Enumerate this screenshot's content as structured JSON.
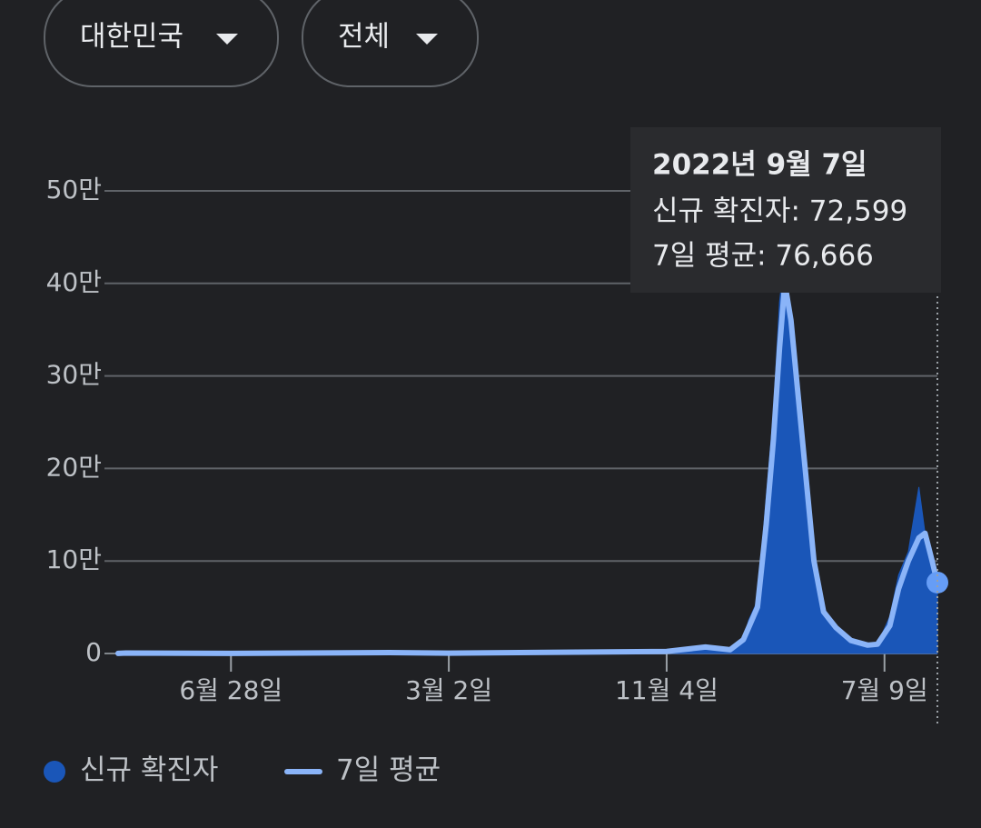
{
  "filters": [
    "대한민국",
    "전체"
  ],
  "chart_data": {
    "type": "line",
    "x": [
      "2020-02-21",
      "2020-03-01",
      "2020-06-28",
      "2020-12-25",
      "2021-03-02",
      "2021-07-25",
      "2021-11-04",
      "2021-12-18",
      "2022-01-15",
      "2022-01-30",
      "2022-02-05",
      "2022-02-15",
      "2022-02-25",
      "2022-03-05",
      "2022-03-12",
      "2022-03-18",
      "2022-03-25",
      "2022-04-01",
      "2022-04-10",
      "2022-04-20",
      "2022-05-01",
      "2022-05-15",
      "2022-06-01",
      "2022-06-20",
      "2022-07-01",
      "2022-07-15",
      "2022-07-25",
      "2022-08-05",
      "2022-08-17",
      "2022-08-24",
      "2022-09-01",
      "2022-09-07"
    ],
    "xlim": [
      "2020-02-21",
      "2022-09-07"
    ],
    "xticks": [
      {
        "value": "2020-06-28",
        "label": "6월 28일"
      },
      {
        "value": "2021-03-02",
        "label": "3월 2일"
      },
      {
        "value": "2021-11-04",
        "label": "11월 4일"
      },
      {
        "value": "2022-07-09",
        "label": "7월 9일"
      }
    ],
    "ylim": [
      0,
      500000
    ],
    "yticks": [
      0,
      {
        "value": 100000,
        "label": "10만"
      },
      {
        "value": 200000,
        "label": "20만"
      },
      {
        "value": 300000,
        "label": "30만"
      },
      {
        "value": 400000,
        "label": "40만"
      },
      {
        "value": 500000,
        "label": "50만"
      }
    ],
    "grid": true,
    "series": [
      {
        "name": "신규 확진자",
        "color": "#1a56b8",
        "style": "area",
        "values": [
          100,
          600,
          50,
          1200,
          400,
          1500,
          2500,
          7500,
          4000,
          15000,
          36000,
          57000,
          170000,
          260000,
          380000,
          430000,
          340000,
          280000,
          180000,
          90000,
          45000,
          25000,
          12000,
          8000,
          10000,
          40000,
          85000,
          110000,
          180000,
          130000,
          90000,
          72599
        ]
      },
      {
        "name": "7일 평균",
        "color": "#8ab4f8",
        "style": "line",
        "values": [
          50,
          500,
          50,
          1000,
          400,
          1500,
          2300,
          7000,
          4000,
          15000,
          28000,
          50000,
          140000,
          230000,
          330000,
          400000,
          360000,
          290000,
          200000,
          100000,
          45000,
          28000,
          14000,
          9000,
          10000,
          30000,
          70000,
          100000,
          125000,
          130000,
          100000,
          76666
        ]
      }
    ],
    "tooltip": {
      "title": "2022년 9월 7일",
      "lines": [
        "신규 확진자: 72,599",
        "7일 평균: 76,666"
      ]
    }
  }
}
